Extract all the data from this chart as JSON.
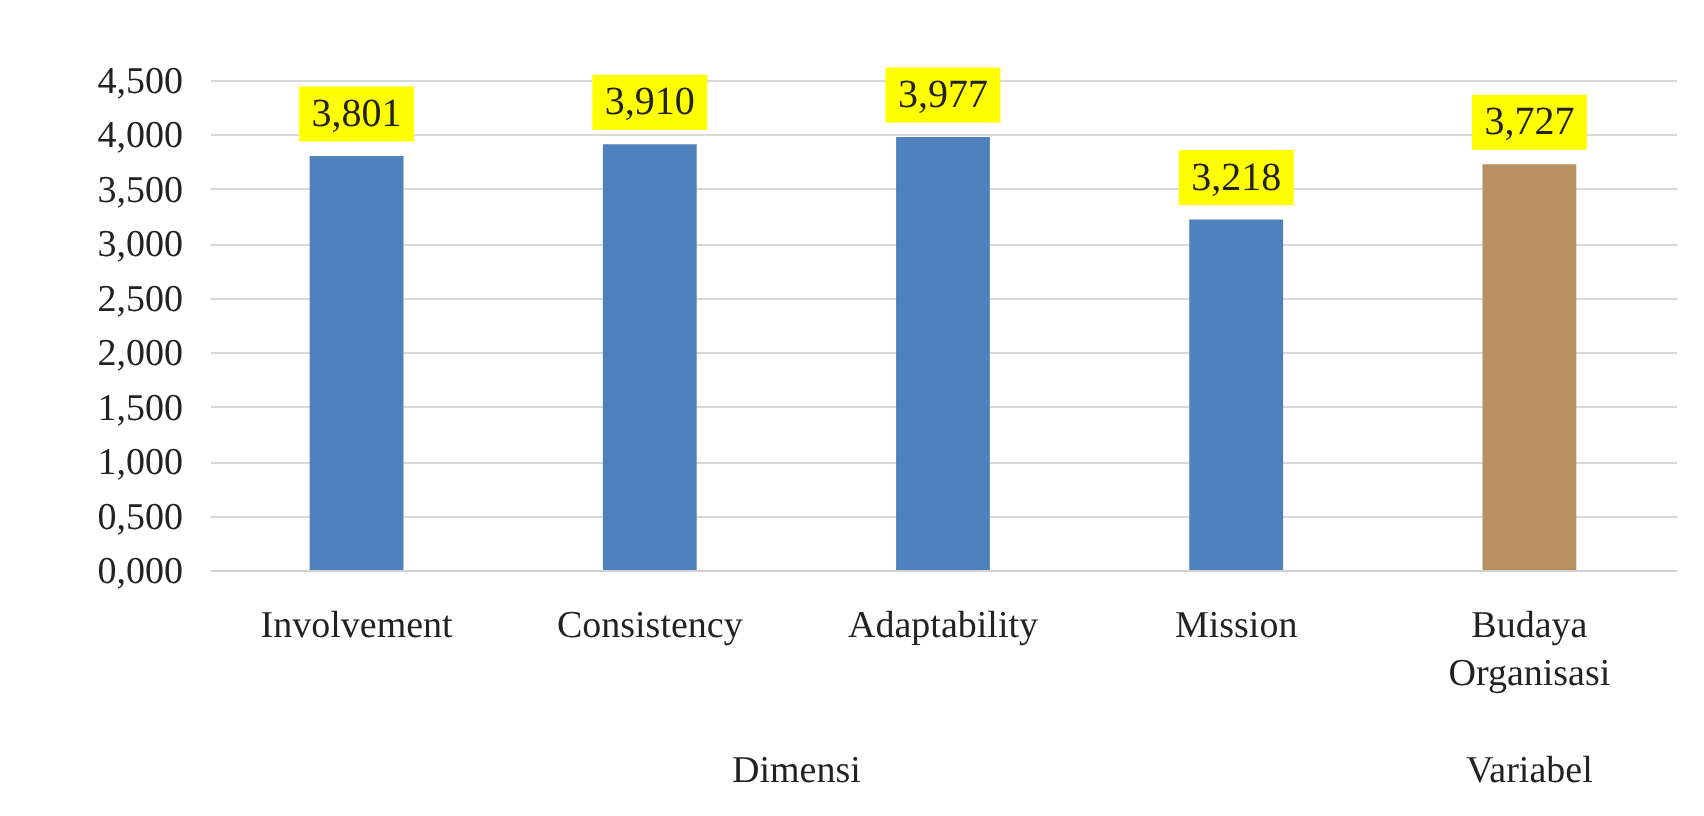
{
  "chart_data": {
    "type": "bar",
    "categories": [
      "Involvement",
      "Consistency",
      "Adaptability",
      "Mission",
      "Budaya Organisasi"
    ],
    "values": [
      3.801,
      3.91,
      3.977,
      3.218,
      3.727
    ],
    "colors": [
      "#4f81bd",
      "#4f81bd",
      "#4f81bd",
      "#4f81bd",
      "#b8905f"
    ],
    "value_labels": [
      "3,801",
      "3,910",
      "3,977",
      "3,218",
      "3,727"
    ],
    "ylim": [
      0,
      4.5
    ],
    "yticks": [
      {
        "value": 0,
        "label": "0,000"
      },
      {
        "value": 0.5,
        "label": "0,500"
      },
      {
        "value": 1,
        "label": "1,000"
      },
      {
        "value": 1.5,
        "label": "1,500"
      },
      {
        "value": 2,
        "label": "2,000"
      },
      {
        "value": 2.5,
        "label": "2,500"
      },
      {
        "value": 3,
        "label": "3,000"
      },
      {
        "value": 3.5,
        "label": "3,500"
      },
      {
        "value": 4,
        "label": "4,000"
      },
      {
        "value": 4.5,
        "label": "4,500"
      }
    ],
    "grid": "y",
    "annotations": [
      "Dimensi",
      "Variabel"
    ]
  }
}
